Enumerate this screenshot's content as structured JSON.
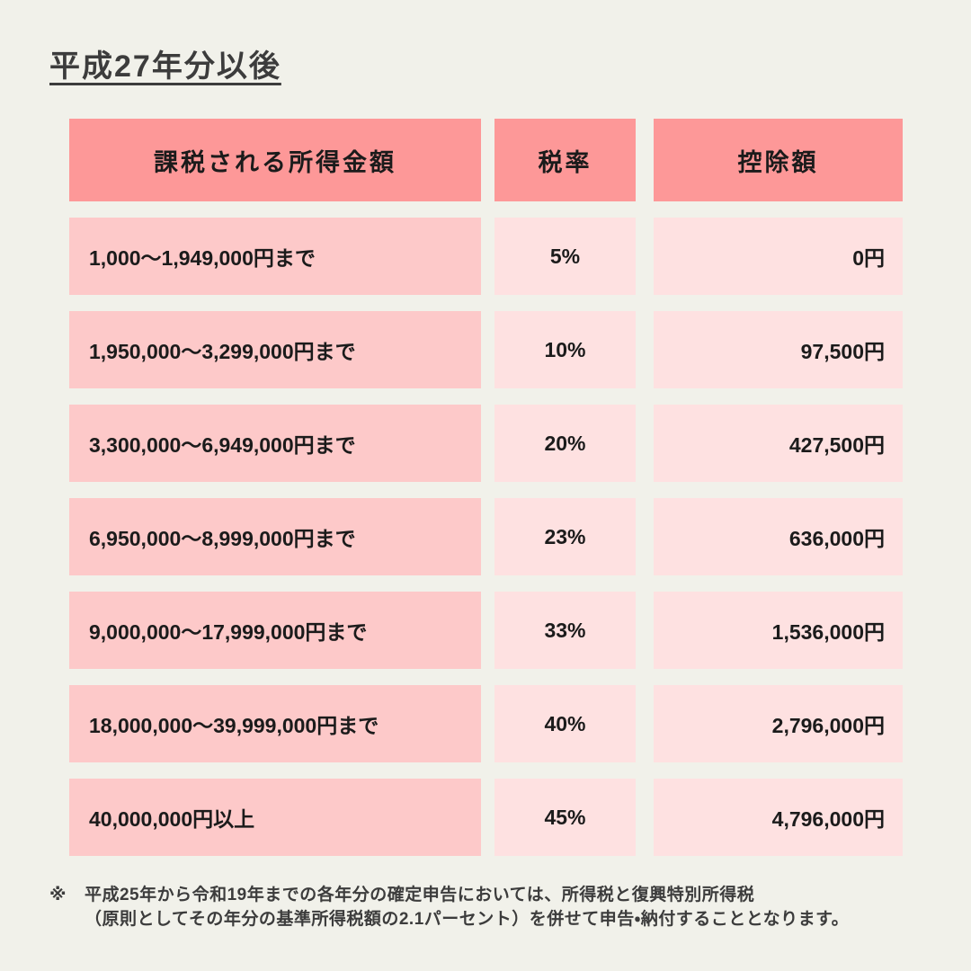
{
  "title": "平成27年分以後",
  "colors": {
    "background": "#f1f1ea",
    "header_bg": "#fd9898",
    "row_label_bg": "#fdc9c9",
    "cell_bg": "#fee1e1",
    "text": "#1b1b1b",
    "title_text": "#3c3c3c",
    "note_text": "#3c3c3c"
  },
  "table": {
    "headers": [
      "課税される所得金額",
      "税率",
      "控除額"
    ],
    "rows": [
      {
        "income": "1,000～1,949,000円まで",
        "rate": "5%",
        "deduction": "0円"
      },
      {
        "income": "1,950,000～3,299,000円まで",
        "rate": "10%",
        "deduction": "97,500円"
      },
      {
        "income": "3,300,000～6,949,000円まで",
        "rate": "20%",
        "deduction": "427,500円"
      },
      {
        "income": "6,950,000～8,999,000円まで",
        "rate": "23%",
        "deduction": "636,000円"
      },
      {
        "income": "9,000,000～17,999,000円まで",
        "rate": "33%",
        "deduction": "1,536,000円"
      },
      {
        "income": "18,000,000～39,999,000円まで",
        "rate": "40%",
        "deduction": "2,796,000円"
      },
      {
        "income": "40,000,000円以上",
        "rate": "45%",
        "deduction": "4,796,000円"
      }
    ]
  },
  "note": {
    "mark": "※",
    "lines": [
      "平成25年から令和19年までの各年分の確定申告においては、所得税と復興特別所得税",
      "（原則としてその年分の基準所得税額の2.1パーセント）を併せて申告・納付することとなります。"
    ]
  },
  "chart_data": {
    "type": "table",
    "title": "平成27年分以後",
    "columns": [
      "課税される所得金額",
      "税率",
      "控除額"
    ],
    "rows": [
      [
        "1,000～1,949,000円まで",
        "5%",
        "0円"
      ],
      [
        "1,950,000～3,299,000円まで",
        "10%",
        "97,500円"
      ],
      [
        "3,300,000～6,949,000円まで",
        "20%",
        "427,500円"
      ],
      [
        "6,950,000～8,999,000円まで",
        "23%",
        "636,000円"
      ],
      [
        "9,000,000～17,999,000円まで",
        "33%",
        "1,536,000円"
      ],
      [
        "18,000,000～39,999,000円まで",
        "40%",
        "2,796,000円"
      ],
      [
        "40,000,000円以上",
        "45%",
        "4,796,000円"
      ]
    ],
    "rates_percent": [
      5,
      10,
      20,
      23,
      33,
      40,
      45
    ],
    "deductions_yen": [
      0,
      97500,
      427500,
      636000,
      1536000,
      2796000,
      4796000
    ],
    "footnote": "※ 平成25年から令和19年までの各年分の確定申告においては、所得税と復興特別所得税（原則としてその年分の基準所得税額の2.1パーセント）を併せて申告・納付することとなります。"
  }
}
